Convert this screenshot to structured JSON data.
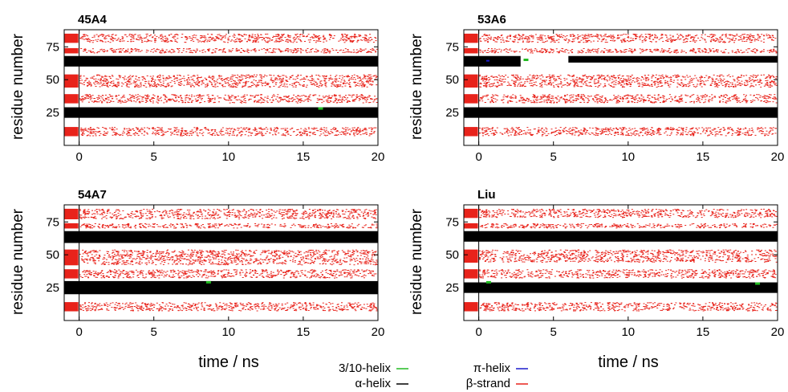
{
  "figure": {
    "xlabel": "time / ns",
    "ylabel": "residue number"
  },
  "legend": [
    {
      "label": "3/10-helix",
      "color": "#22bb22"
    },
    {
      "label": "π-helix",
      "color": "#1a1acc"
    },
    {
      "label": "α-helix",
      "color": "#000000"
    },
    {
      "label": "β-strand",
      "color": "#e8231b"
    }
  ],
  "chart_data": [
    {
      "type": "heatmap",
      "title": "45A4",
      "xlim": [
        -1,
        20
      ],
      "ylim": [
        0,
        88
      ],
      "xticks": [
        0,
        5,
        10,
        15,
        20
      ],
      "yticks": [
        25,
        50,
        75
      ],
      "alpha_helix": [
        {
          "x0": -1,
          "x1": 20,
          "y0": 60,
          "y1": 68
        },
        {
          "x0": -1,
          "x1": 20,
          "y0": 21,
          "y1": 29
        }
      ],
      "beta_strand": [
        {
          "y0": 78,
          "y1": 85
        },
        {
          "y0": 70,
          "y1": 74
        },
        {
          "y0": 44,
          "y1": 54
        },
        {
          "y0": 32,
          "y1": 39
        },
        {
          "y0": 7,
          "y1": 14
        }
      ],
      "three_ten_helix": [
        {
          "x": 16,
          "y": 29
        }
      ],
      "pi_helix": []
    },
    {
      "type": "heatmap",
      "title": "53A6",
      "xlim": [
        -1,
        20
      ],
      "ylim": [
        0,
        88
      ],
      "xticks": [
        0,
        5,
        10,
        15,
        20
      ],
      "yticks": [
        25,
        50,
        75
      ],
      "alpha_helix": [
        {
          "x0": -1,
          "x1": 2.8,
          "y0": 60,
          "y1": 68
        },
        {
          "x0": 6,
          "x1": 20,
          "y0": 63,
          "y1": 68
        },
        {
          "x0": -1,
          "x1": 20,
          "y0": 21,
          "y1": 29
        }
      ],
      "beta_strand": [
        {
          "y0": 78,
          "y1": 85
        },
        {
          "y0": 70,
          "y1": 74
        },
        {
          "y0": 44,
          "y1": 54
        },
        {
          "y0": 32,
          "y1": 39
        },
        {
          "y0": 7,
          "y1": 14
        }
      ],
      "three_ten_helix": [
        {
          "x": 3,
          "y": 66
        }
      ],
      "pi_helix": [
        {
          "x": 0.5,
          "y": 65
        }
      ]
    },
    {
      "type": "heatmap",
      "title": "54A7",
      "xlim": [
        -1,
        20
      ],
      "ylim": [
        0,
        88
      ],
      "xticks": [
        0,
        5,
        10,
        15,
        20
      ],
      "yticks": [
        25,
        50,
        75
      ],
      "alpha_helix": [
        {
          "x0": -1,
          "x1": 20,
          "y0": 59,
          "y1": 68
        },
        {
          "x0": -1,
          "x1": 20,
          "y0": 20,
          "y1": 30
        }
      ],
      "beta_strand": [
        {
          "y0": 77,
          "y1": 85
        },
        {
          "y0": 70,
          "y1": 74
        },
        {
          "y0": 42,
          "y1": 54
        },
        {
          "y0": 32,
          "y1": 39
        },
        {
          "y0": 7,
          "y1": 14
        }
      ],
      "three_ten_helix": [
        {
          "x": 8.5,
          "y": 30
        }
      ],
      "pi_helix": []
    },
    {
      "type": "heatmap",
      "title": "Liu",
      "xlim": [
        -1,
        20
      ],
      "ylim": [
        0,
        88
      ],
      "xticks": [
        0,
        5,
        10,
        15,
        20
      ],
      "yticks": [
        25,
        50,
        75
      ],
      "alpha_helix": [
        {
          "x0": -1,
          "x1": 20,
          "y0": 60,
          "y1": 68
        },
        {
          "x0": -1,
          "x1": 20,
          "y0": 21,
          "y1": 29
        }
      ],
      "beta_strand": [
        {
          "y0": 78,
          "y1": 85
        },
        {
          "y0": 70,
          "y1": 74
        },
        {
          "y0": 44,
          "y1": 54
        },
        {
          "y0": 32,
          "y1": 39
        },
        {
          "y0": 7,
          "y1": 14
        }
      ],
      "three_ten_helix": [
        {
          "x": 0.5,
          "y": 30
        },
        {
          "x": 18.5,
          "y": 29
        }
      ],
      "pi_helix": []
    }
  ]
}
